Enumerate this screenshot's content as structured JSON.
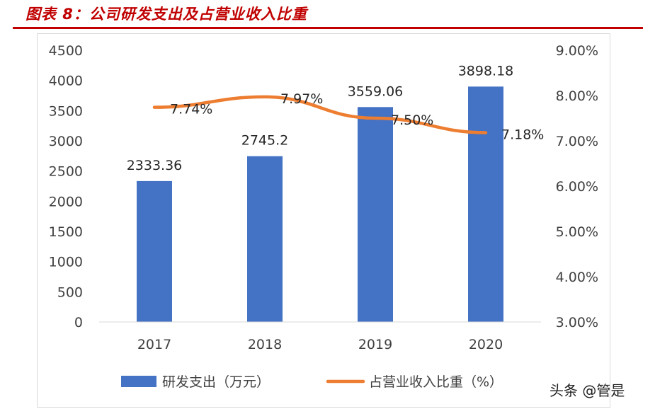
{
  "figure_title": "图表 8：公司研发支出及占营业收入比重",
  "watermark": "头条 @管是",
  "colors": {
    "title": "#c00000",
    "bar": "#4472c4",
    "line": "#ed7d31",
    "axis_text": "#404040"
  },
  "chart_data": {
    "type": "bar",
    "title": "",
    "categories": [
      "2017",
      "2018",
      "2019",
      "2020"
    ],
    "series": [
      {
        "name": "研发支出（万元）",
        "type": "bar",
        "axis": "left",
        "values": [
          2333.36,
          2745.2,
          3559.06,
          3898.18
        ],
        "labels": [
          "2333.36",
          "2745.2",
          "3559.06",
          "3898.18"
        ]
      },
      {
        "name": "占营业收入比重（%）",
        "type": "line",
        "axis": "right",
        "values": [
          7.74,
          7.97,
          7.5,
          7.18
        ],
        "labels": [
          "7.74%",
          "7.97%",
          "7.50%",
          "7.18%"
        ]
      }
    ],
    "y_left": {
      "range": [
        0,
        4500
      ],
      "ticks": [
        0,
        500,
        1000,
        1500,
        2000,
        2500,
        3000,
        3500,
        4000,
        4500
      ],
      "tick_labels": [
        "0",
        "500",
        "1000",
        "1500",
        "2000",
        "2500",
        "3000",
        "3500",
        "4000",
        "4500"
      ]
    },
    "y_right": {
      "range": [
        3,
        9
      ],
      "ticks": [
        3,
        4,
        5,
        6,
        7,
        8,
        9
      ],
      "tick_labels": [
        "3.00%",
        "4.00%",
        "5.00%",
        "6.00%",
        "7.00%",
        "8.00%",
        "9.00%"
      ]
    },
    "grid": false,
    "legend_position": "bottom"
  }
}
